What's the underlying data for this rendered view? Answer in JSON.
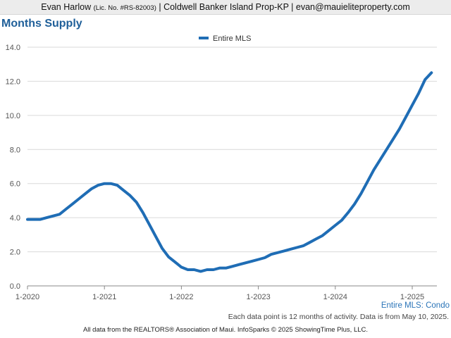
{
  "header": {
    "agent_name": "Evan Harlow",
    "license": "(Lic. No. #RS-82003)",
    "office_and_email": "| Coldwell Banker Island Prop-KP | evan@mauieliteproperty.com"
  },
  "chart_title": "Months Supply",
  "series_tag": "Entire MLS: Condo",
  "note": "Each data point is 12 months of activity. Data is from May 10, 2025.",
  "footer": "All data from the REALTORS® Association of Maui. InfoSparks © 2025 ShowingTime Plus, LLC.",
  "colors": {
    "series": "#1f6db5",
    "title": "#1f5f99",
    "grid": "#d9d9d9"
  },
  "chart_data": {
    "type": "line",
    "title": "Months Supply",
    "xlabel": "",
    "ylabel": "",
    "ylim": [
      0,
      14
    ],
    "y_ticks": [
      "0.0",
      "2.0",
      "4.0",
      "6.0",
      "8.0",
      "10.0",
      "12.0",
      "14.0"
    ],
    "x_ticks": [
      "1-2020",
      "1-2021",
      "1-2022",
      "1-2023",
      "1-2024",
      "1-2025"
    ],
    "legend": "top-center",
    "grid": true,
    "series": [
      {
        "name": "Entire MLS",
        "x": [
          "1-2020",
          "2-2020",
          "3-2020",
          "4-2020",
          "5-2020",
          "6-2020",
          "7-2020",
          "8-2020",
          "9-2020",
          "10-2020",
          "11-2020",
          "12-2020",
          "1-2021",
          "2-2021",
          "3-2021",
          "4-2021",
          "5-2021",
          "6-2021",
          "7-2021",
          "8-2021",
          "9-2021",
          "10-2021",
          "11-2021",
          "12-2021",
          "1-2022",
          "2-2022",
          "3-2022",
          "4-2022",
          "5-2022",
          "6-2022",
          "7-2022",
          "8-2022",
          "9-2022",
          "10-2022",
          "11-2022",
          "12-2022",
          "1-2023",
          "2-2023",
          "3-2023",
          "4-2023",
          "5-2023",
          "6-2023",
          "7-2023",
          "8-2023",
          "9-2023",
          "10-2023",
          "11-2023",
          "12-2023",
          "1-2024",
          "2-2024",
          "3-2024",
          "4-2024",
          "5-2024",
          "6-2024",
          "7-2024",
          "8-2024",
          "9-2024",
          "10-2024",
          "11-2024",
          "12-2024",
          "1-2025",
          "2-2025",
          "3-2025",
          "4-2025"
        ],
        "values": [
          3.9,
          3.9,
          3.9,
          4.0,
          4.1,
          4.2,
          4.5,
          4.8,
          5.1,
          5.4,
          5.7,
          5.9,
          6.0,
          6.0,
          5.9,
          5.6,
          5.3,
          4.9,
          4.3,
          3.6,
          2.9,
          2.2,
          1.7,
          1.4,
          1.1,
          0.95,
          0.95,
          0.85,
          0.95,
          0.95,
          1.05,
          1.05,
          1.15,
          1.25,
          1.35,
          1.45,
          1.55,
          1.65,
          1.85,
          1.95,
          2.05,
          2.15,
          2.25,
          2.35,
          2.55,
          2.75,
          2.95,
          3.25,
          3.55,
          3.85,
          4.3,
          4.8,
          5.4,
          6.1,
          6.8,
          7.4,
          8.0,
          8.6,
          9.2,
          9.9,
          10.6,
          11.3,
          12.1,
          12.5
        ]
      }
    ]
  }
}
